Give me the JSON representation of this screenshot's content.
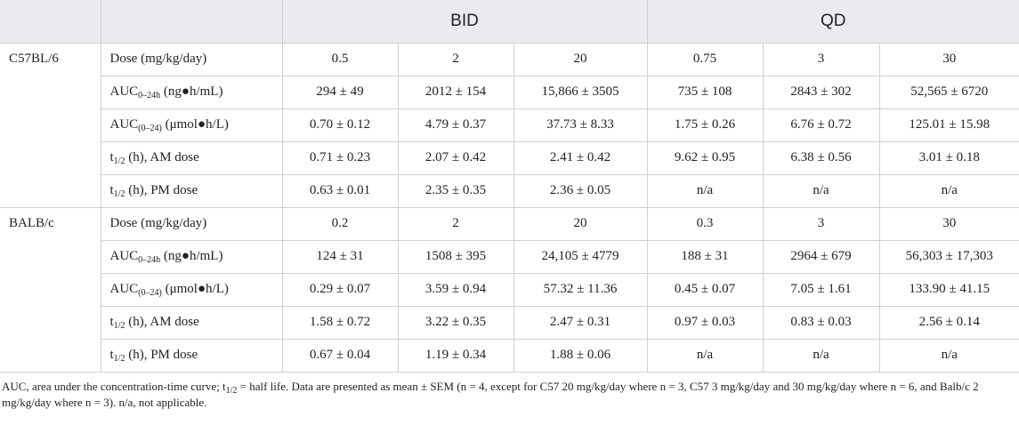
{
  "table": {
    "groups": [
      "BID",
      "QD"
    ],
    "sections": [
      {
        "strain": "C57BL/6",
        "rows": [
          {
            "label": [
              {
                "text": "Dose (mg/kg/day)"
              }
            ],
            "cells": [
              "0.5",
              "2",
              "20",
              "0.75",
              "3",
              "30"
            ]
          },
          {
            "label": [
              {
                "text": "AUC"
              },
              {
                "sub": "0–24h"
              },
              {
                "text": " (ng●h/mL)"
              }
            ],
            "cells": [
              "294 ± 49",
              "2012 ± 154",
              "15,866 ± 3505",
              "735 ± 108",
              "2843 ± 302",
              "52,565 ± 6720"
            ]
          },
          {
            "label": [
              {
                "text": "AUC"
              },
              {
                "sub": "(0–24)"
              },
              {
                "text": " (μmol●h/L)"
              }
            ],
            "cells": [
              "0.70 ± 0.12",
              "4.79 ± 0.37",
              "37.73 ± 8.33",
              "1.75 ± 0.26",
              "6.76 ± 0.72",
              "125.01 ± 15.98"
            ]
          },
          {
            "label": [
              {
                "text": "t"
              },
              {
                "sub": "1/2"
              },
              {
                "text": " (h), AM dose"
              }
            ],
            "cells": [
              "0.71 ± 0.23",
              "2.07 ± 0.42",
              "2.41 ± 0.42",
              "9.62 ± 0.95",
              "6.38 ± 0.56",
              "3.01 ± 0.18"
            ]
          },
          {
            "label": [
              {
                "text": "t"
              },
              {
                "sub": "1/2"
              },
              {
                "text": " (h), PM dose"
              }
            ],
            "cells": [
              "0.63 ± 0.01",
              "2.35 ± 0.35",
              "2.36 ± 0.05",
              "n/a",
              "n/a",
              "n/a"
            ]
          }
        ]
      },
      {
        "strain": "BALB/c",
        "rows": [
          {
            "label": [
              {
                "text": "Dose (mg/kg/day)"
              }
            ],
            "cells": [
              "0.2",
              "2",
              "20",
              "0.3",
              "3",
              "30"
            ]
          },
          {
            "label": [
              {
                "text": "AUC"
              },
              {
                "sub": "0–24h"
              },
              {
                "text": " (ng●h/mL)"
              }
            ],
            "cells": [
              "124 ± 31",
              "1508 ± 395",
              "24,105 ± 4779",
              "188 ± 31",
              "2964 ± 679",
              "56,303 ± 17,303"
            ]
          },
          {
            "label": [
              {
                "text": "AUC"
              },
              {
                "sub": "(0–24)"
              },
              {
                "text": " (μmol●h/L)"
              }
            ],
            "cells": [
              "0.29 ± 0.07",
              "3.59 ± 0.94",
              "57.32 ± 11.36",
              "0.45 ± 0.07",
              "7.05 ± 1.61",
              "133.90 ± 41.15"
            ]
          },
          {
            "label": [
              {
                "text": "t"
              },
              {
                "sub": "1/2"
              },
              {
                "text": " (h), AM dose"
              }
            ],
            "cells": [
              "1.58 ± 0.72",
              "3.22 ± 0.35",
              "2.47 ± 0.31",
              "0.97 ± 0.03",
              "0.83 ± 0.03",
              "2.56 ± 0.14"
            ]
          },
          {
            "label": [
              {
                "text": "t"
              },
              {
                "sub": "1/2"
              },
              {
                "text": " (h), PM dose"
              }
            ],
            "cells": [
              "0.67 ± 0.04",
              "1.19 ± 0.34",
              "1.88 ± 0.06",
              "n/a",
              "n/a",
              "n/a"
            ]
          }
        ]
      }
    ]
  },
  "footnote": [
    {
      "text": "AUC, area under the concentration-time curve; t"
    },
    {
      "sub": "1/2"
    },
    {
      "text": " = half life. Data are presented as mean ± SEM (n = 4, except for C57 20 mg/kg/day where n = 3, C57 3 mg/kg/day and 30 mg/kg/day where n = 6, and Balb/c 2 mg/kg/day where n = 3). n/a, not applicable."
    }
  ]
}
